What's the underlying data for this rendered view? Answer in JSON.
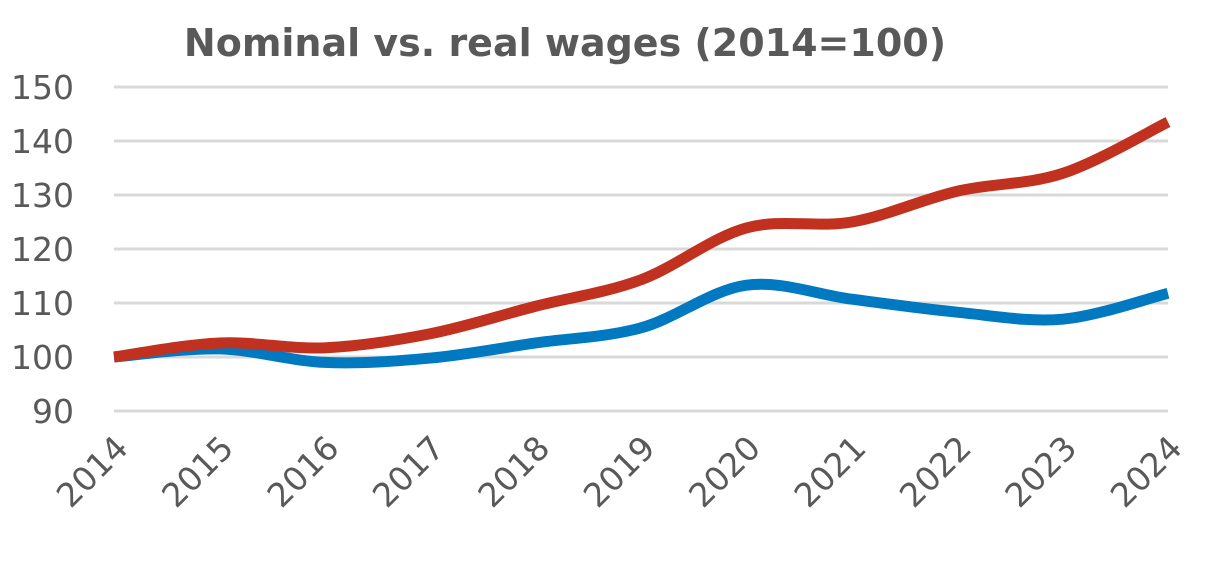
{
  "chart_data": {
    "type": "line",
    "title": "Nominal vs. real  wages (2014=100)",
    "xlabel": "",
    "ylabel": "",
    "x": [
      "2014",
      "2015",
      "2016",
      "2017",
      "2018",
      "2019",
      "2020",
      "2021",
      "2022",
      "2023",
      "2024"
    ],
    "ylim": [
      90,
      150
    ],
    "yticks": [
      90,
      100,
      110,
      120,
      130,
      140,
      150
    ],
    "grid": true,
    "legend": "none",
    "series": [
      {
        "color": "#c0311f",
        "values": [
          100,
          102.6,
          101.7,
          104.3,
          109.4,
          114.3,
          123.9,
          125.0,
          130.7,
          134.0,
          143.5
        ]
      },
      {
        "color": "#0079c1",
        "values": [
          100,
          101.5,
          99.0,
          99.8,
          102.6,
          105.4,
          113.3,
          110.7,
          108.3,
          107.0,
          111.8
        ]
      }
    ]
  }
}
